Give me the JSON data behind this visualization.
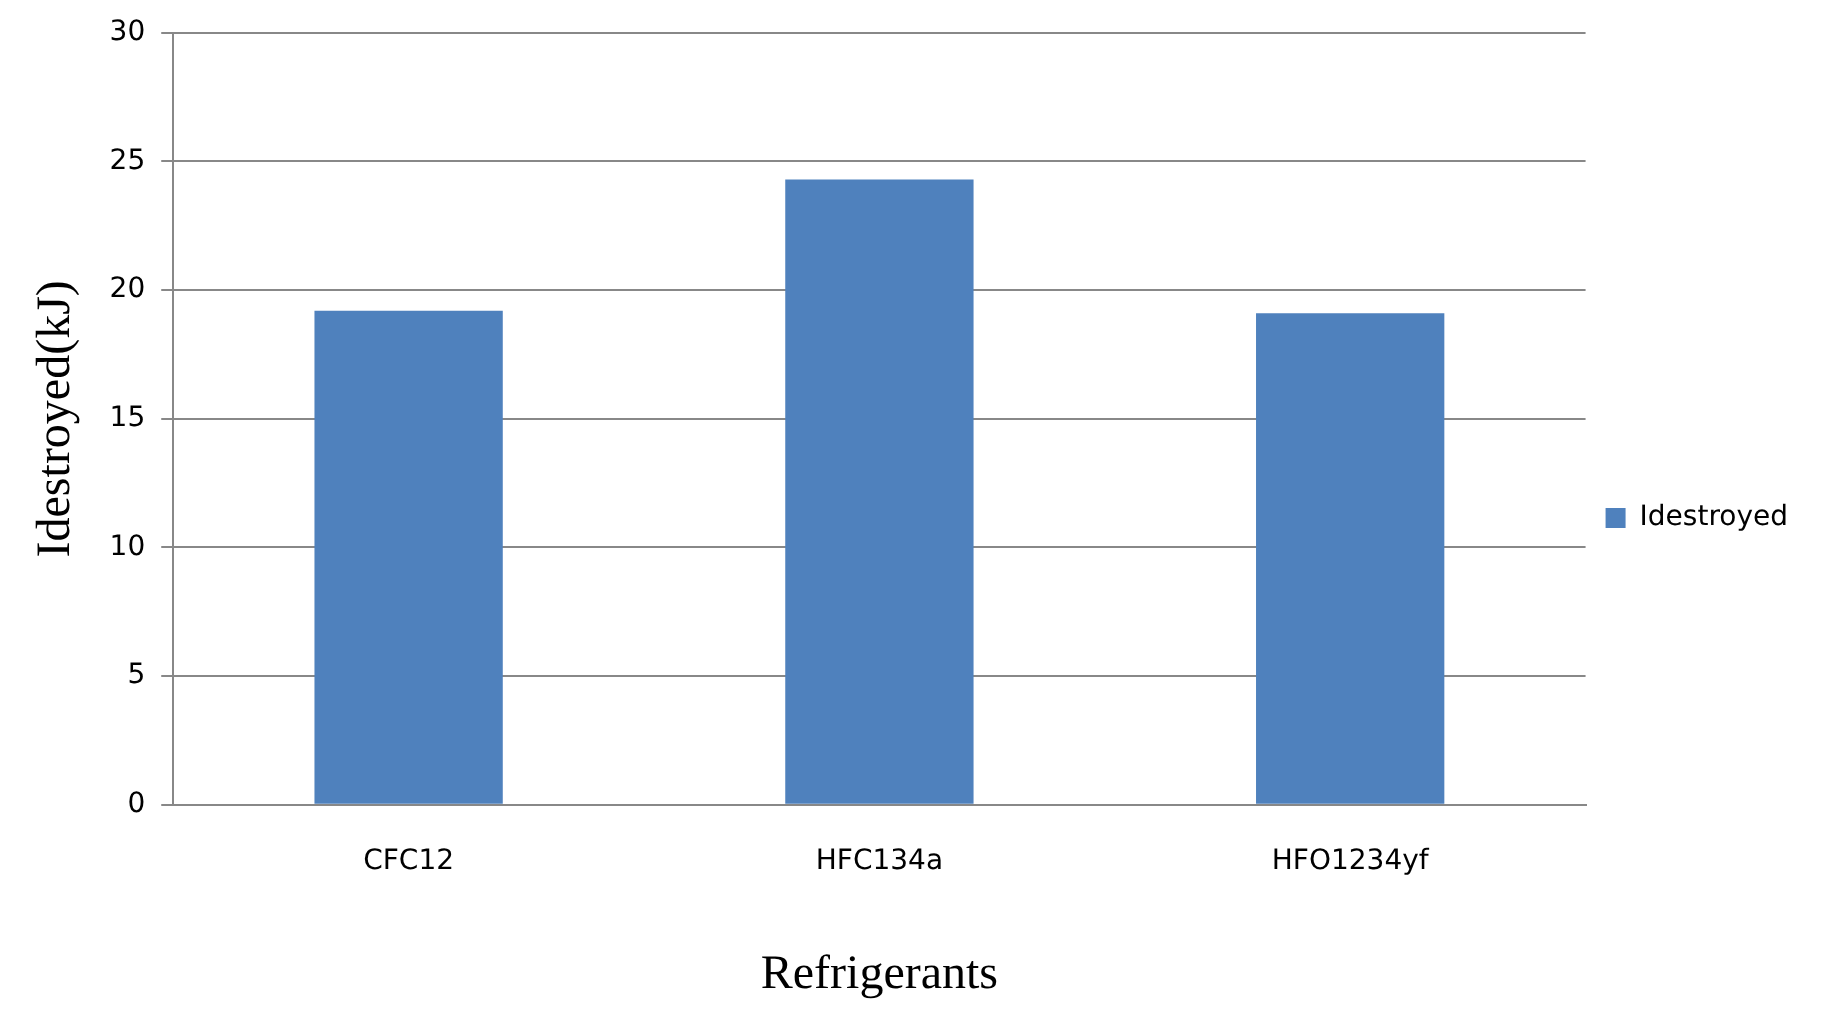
{
  "chart_data": {
    "type": "bar",
    "xlabel": "Refrigerants",
    "ylabel": "Idestroyed(kJ)",
    "categories": [
      "CFC12",
      "HFC134a",
      "HFO1234yf"
    ],
    "series": [
      {
        "name": "Idestroyed",
        "color": "#4f81bd",
        "values": [
          19.2,
          24.3,
          19.1
        ]
      }
    ],
    "ylim": [
      0,
      30
    ],
    "yticks": [
      0,
      5,
      10,
      15,
      20,
      25,
      30
    ],
    "grid": "y",
    "legend": "right"
  }
}
